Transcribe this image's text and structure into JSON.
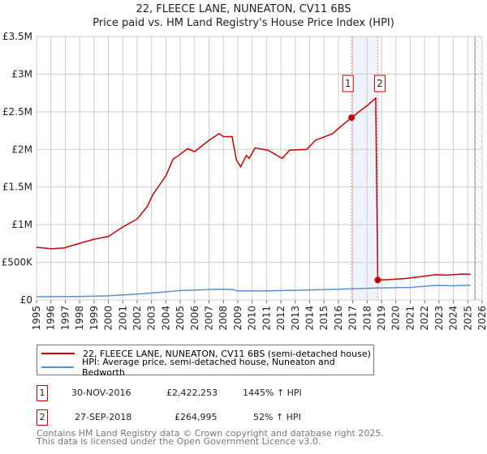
{
  "title": "22, FLEECE LANE, NUNEATON, CV11 6BS",
  "subtitle": "Price paid vs. HM Land Registry's House Price Index (HPI)",
  "chart_data": {
    "type": "line",
    "xlim": [
      1995,
      2026
    ],
    "ylim": [
      0,
      3500000
    ],
    "x_ticks": [
      "1995",
      "1996",
      "1997",
      "1998",
      "1999",
      "2000",
      "2001",
      "2002",
      "2003",
      "2004",
      "2005",
      "2006",
      "2007",
      "2008",
      "2009",
      "2010",
      "2011",
      "2012",
      "2013",
      "2014",
      "2015",
      "2016",
      "2017",
      "2018",
      "2019",
      "2020",
      "2021",
      "2022",
      "2023",
      "2024",
      "2025",
      "2026"
    ],
    "y_ticks": [
      {
        "v": 0,
        "label": "£0"
      },
      {
        "v": 500000,
        "label": "£500K"
      },
      {
        "v": 1000000,
        "label": "£1M"
      },
      {
        "v": 1500000,
        "label": "£1.5M"
      },
      {
        "v": 2000000,
        "label": "£2M"
      },
      {
        "v": 2500000,
        "label": "£2.5M"
      },
      {
        "v": 3000000,
        "label": "£3M"
      },
      {
        "v": 3500000,
        "label": "£3.5M"
      }
    ],
    "series": [
      {
        "name": "22, FLEECE LANE, NUNEATON, CV11 6BS (semi-detached house)",
        "color": "#cc0000",
        "x": [
          1995,
          1996,
          1996.9,
          1998,
          1999,
          2000,
          2001,
          2002,
          2002.7,
          2003.1,
          2004,
          2004.5,
          2004.9,
          2005.5,
          2006,
          2007,
          2007.7,
          2008,
          2008.6,
          2008.9,
          2009.2,
          2009.6,
          2009.8,
          2010.2,
          2011.1,
          2012.1,
          2012.6,
          2013.8,
          2014.4,
          2015.6,
          2016.2,
          2016.92,
          2017.5,
          2018.0,
          2018.6,
          2018.74,
          2019.5,
          2020.7,
          2022.8,
          2023.6,
          2024.6,
          2025.2
        ],
        "y": [
          700000,
          680000,
          690000,
          753000,
          807000,
          843000,
          969000,
          1076000,
          1240000,
          1400000,
          1650000,
          1870000,
          1920000,
          2010000,
          1970000,
          2120000,
          2210000,
          2170000,
          2170000,
          1860000,
          1770000,
          1920000,
          1880000,
          2020000,
          1990000,
          1880000,
          1990000,
          2000000,
          2120000,
          2210000,
          2310000,
          2422253,
          2510000,
          2580000,
          2680000,
          264995,
          270000,
          285000,
          337000,
          330000,
          345000,
          340000
        ]
      },
      {
        "name": "HPI: Average price, semi-detached house, Nuneaton and Bedworth",
        "color": "#5b8fd4",
        "x": [
          1995,
          1998,
          2000,
          2002,
          2004,
          2005,
          2007.7,
          2008.6,
          2009.0,
          2011,
          2013,
          2015,
          2016.9,
          2018.7,
          2021,
          2022.8,
          2024,
          2025.2
        ],
        "y": [
          43000,
          45000,
          55000,
          79000,
          108000,
          125000,
          143000,
          140000,
          119000,
          122000,
          128000,
          138000,
          149000,
          158000,
          167000,
          194000,
          188000,
          195000
        ]
      }
    ],
    "sales": [
      {
        "label": "1",
        "date": "30-NOV-2016",
        "x": 2016.92,
        "price": "£2,422,253",
        "price_value": 2422253,
        "hpi": "1445% ↑ HPI"
      },
      {
        "label": "2",
        "date": "27-SEP-2018",
        "x": 2018.74,
        "price": "£264,995",
        "price_value": 264995,
        "hpi": "52% ↑ HPI"
      }
    ],
    "forecast_start": 2025.5
  },
  "footer": {
    "line1": "Contains HM Land Registry data © Crown copyright and database right 2025.",
    "line2": "This data is licensed under the Open Government Licence v3.0."
  }
}
